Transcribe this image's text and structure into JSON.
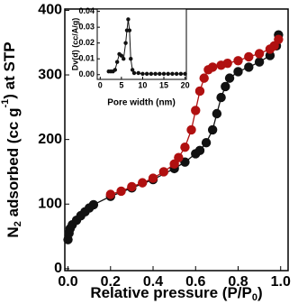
{
  "chart_data": [
    {
      "type": "scatter-line",
      "x_label_parts": [
        "Relative pressure (P/P",
        "0",
        ")"
      ],
      "y_label_parts": [
        "N",
        "2",
        " adsorbed (cc g",
        "-1",
        ") at STP"
      ],
      "xlim": [
        -0.015,
        1.035
      ],
      "ylim": [
        -3,
        402
      ],
      "xticks": [
        {
          "value": 0,
          "label": "0.0"
        },
        0.2,
        0.4,
        0.6,
        0.8,
        {
          "value": 1,
          "label": "1.0"
        }
      ],
      "yticks": [
        0,
        100,
        200,
        300,
        400
      ],
      "series": [
        {
          "color": "#111111",
          "x": [
            0.0,
            0.005,
            0.01,
            0.02,
            0.04,
            0.06,
            0.08,
            0.1,
            0.12,
            0.2,
            0.3,
            0.4,
            0.5,
            0.55,
            0.6,
            0.62,
            0.65,
            0.68,
            0.7,
            0.72,
            0.74,
            0.76,
            0.8,
            0.85,
            0.9,
            0.95,
            0.98,
            0.99
          ],
          "values": [
            45,
            55,
            62,
            68,
            75,
            82,
            88,
            94,
            99,
            112,
            125,
            138,
            155,
            165,
            178,
            183,
            195,
            215,
            240,
            265,
            282,
            295,
            305,
            312,
            320,
            330,
            345,
            362
          ]
        },
        {
          "color": "#b01010",
          "x": [
            0.99,
            0.97,
            0.95,
            0.9,
            0.85,
            0.8,
            0.75,
            0.72,
            0.68,
            0.66,
            0.64,
            0.62,
            0.6,
            0.58,
            0.55,
            0.52,
            0.5,
            0.45,
            0.4,
            0.35,
            0.3,
            0.25,
            0.2
          ],
          "values": [
            355,
            345,
            340,
            333,
            328,
            322,
            318,
            315,
            312,
            308,
            295,
            275,
            245,
            215,
            188,
            172,
            162,
            150,
            140,
            133,
            127,
            120,
            115
          ]
        }
      ]
    },
    {
      "type": "scatter-line",
      "x_label": "Pore width (nm)",
      "y_label": "Dv(d) (cc/A/g)",
      "xlim": [
        -0.7,
        20.3
      ],
      "ylim": [
        -0.003,
        0.0415
      ],
      "xticks": [
        0,
        5,
        10,
        15,
        20
      ],
      "yticks": [
        {
          "value": 0,
          "label": "0.00"
        },
        0.01,
        0.02,
        0.03,
        0.04
      ],
      "series": [
        {
          "color": "#111111",
          "x": [
            2,
            2.5,
            3,
            3.5,
            4,
            4.5,
            5,
            5.5,
            6,
            6.3,
            6.6,
            6.9,
            7.2,
            7.6,
            8,
            9,
            10,
            11,
            12,
            13,
            14,
            15,
            16,
            17,
            18,
            19,
            20
          ],
          "values": [
            0.002,
            0.002,
            0.002,
            0.003,
            0.008,
            0.013,
            0.012,
            0.01,
            0.02,
            0.028,
            0.035,
            0.028,
            0.01,
            0.003,
            0.001,
            0.001,
            0.0005,
            0.0005,
            0.0005,
            0.0005,
            0.0005,
            0.0005,
            0.0005,
            0.0005,
            0.0005,
            0.0005,
            0.0005
          ]
        }
      ]
    }
  ]
}
